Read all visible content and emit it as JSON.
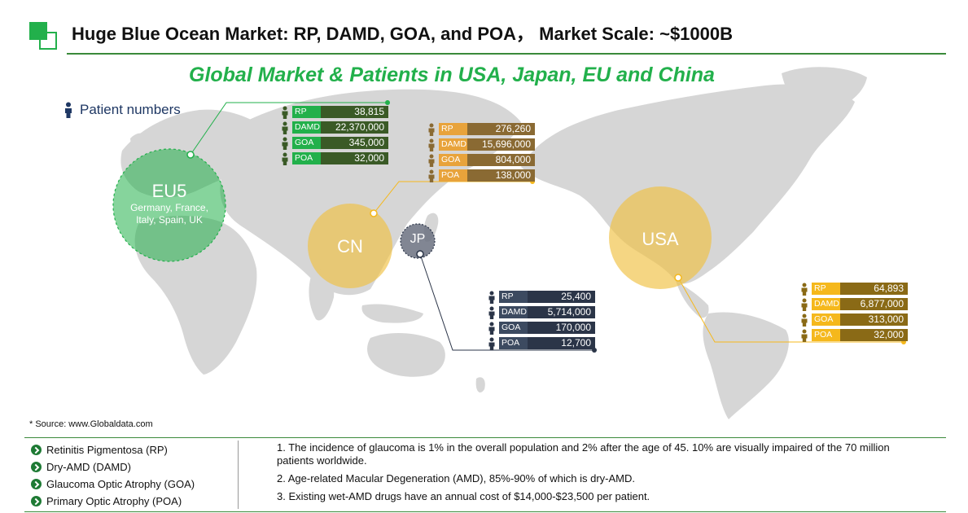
{
  "header": {
    "title": "Huge Blue Ocean Market: RP, DAMD, GOA, and POA，  Market Scale: ~$1000B",
    "subtitle": "Global Market & Patients in USA, Japan, EU and China"
  },
  "legend": {
    "label": "Patient numbers",
    "icon": "person-icon"
  },
  "colors": {
    "eu_light": "#22b04b",
    "eu_dark": "#3a5a26",
    "cn_light": "#e8a33b",
    "cn_dark": "#8a6a33",
    "jp_light": "#3c4a60",
    "jp_dark": "#2b3548",
    "us_light": "#f5b81c",
    "us_dark": "#8a6a16"
  },
  "regions": {
    "eu": {
      "name": "EU5",
      "countries": [
        "Germany, France,",
        "Italy, Spain, UK"
      ],
      "rows": [
        {
          "label": "RP",
          "value": "38,815"
        },
        {
          "label": "DAMD",
          "value": "22,370,000"
        },
        {
          "label": "GOA",
          "value": "345,000"
        },
        {
          "label": "POA",
          "value": "32,000"
        }
      ]
    },
    "cn": {
      "name": "CN",
      "rows": [
        {
          "label": "RP",
          "value": "276,260"
        },
        {
          "label": "DAMD",
          "value": "15,696,000"
        },
        {
          "label": "GOA",
          "value": "804,000"
        },
        {
          "label": "POA",
          "value": "138,000"
        }
      ]
    },
    "jp": {
      "name": "JP",
      "rows": [
        {
          "label": "RP",
          "value": "25,400"
        },
        {
          "label": "DAMD",
          "value": "5,714,000"
        },
        {
          "label": "GOA",
          "value": "170,000"
        },
        {
          "label": "POA",
          "value": "12,700"
        }
      ]
    },
    "us": {
      "name": "USA",
      "rows": [
        {
          "label": "RP",
          "value": "64,893"
        },
        {
          "label": "DAMD",
          "value": "6,877,000"
        },
        {
          "label": "GOA",
          "value": "313,000"
        },
        {
          "label": "POA",
          "value": "32,000"
        }
      ]
    }
  },
  "source": "* Source: www.Globaldata.com",
  "abbreviations": [
    "Retinitis Pigmentosa (RP)",
    "Dry-AMD (DAMD)",
    "Glaucoma Optic Atrophy (GOA)",
    "Primary Optic Atrophy (POA)"
  ],
  "notes": [
    "1. The incidence of glaucoma is 1% in the overall population and 2% after the age of 45. 10% are visually impaired of the 70 million patients worldwide.",
    "2. Age-related Macular Degeneration (AMD), 85%-90% of which is dry-AMD.",
    "3. Existing wet-AMD drugs have an annual cost of $14,000-$23,500 per patient."
  ]
}
